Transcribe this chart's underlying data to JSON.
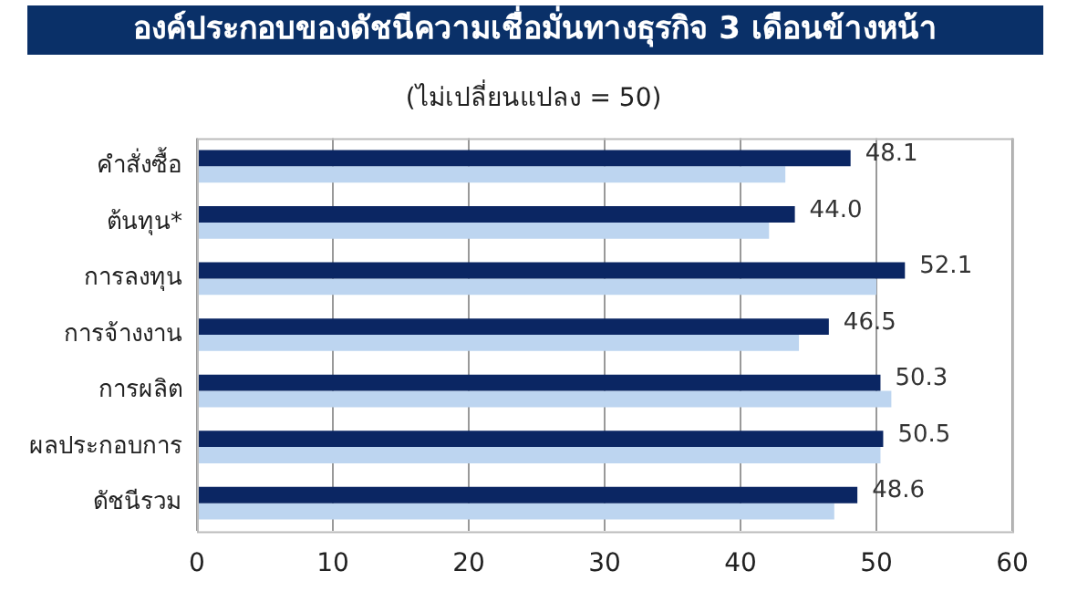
{
  "chart_data": {
    "type": "bar",
    "orientation": "horizontal",
    "title": "องค์ประกอบของดัชนีความเชื่อมั่นทางธุรกิจ 3 เดือนข้างหน้า",
    "subtitle": "(ไม่เปลี่ยนแปลง = 50)",
    "categories": [
      "คำสั่งซื้อ",
      "ต้นทุน*",
      "การลงทุน",
      "การจ้างงาน",
      "การผลิต",
      "ผลประกอบการ",
      "ดัชนีรวม"
    ],
    "series": [
      {
        "color": "#0b2663",
        "values": [
          48.1,
          44.0,
          52.1,
          46.5,
          50.3,
          50.5,
          48.6
        ],
        "value_labels": [
          "48.1",
          "44.0",
          "52.1",
          "46.5",
          "50.3",
          "50.5",
          "48.6"
        ]
      },
      {
        "color": "#bdd5f0",
        "values": [
          43.3,
          42.1,
          50.0,
          44.3,
          51.1,
          50.3,
          46.9
        ]
      }
    ],
    "xlim": [
      0,
      60
    ],
    "xticks": [
      0,
      10,
      20,
      30,
      40,
      50,
      60
    ],
    "grid": "x",
    "legend": false
  }
}
